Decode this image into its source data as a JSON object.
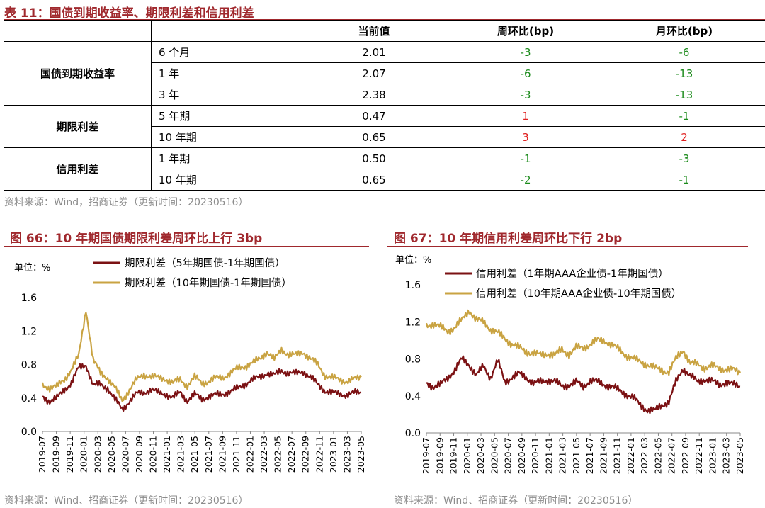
{
  "table": {
    "title": "表 11：国债到期收益率、期限利差和信用利差",
    "headers": [
      "",
      "",
      "当前值",
      "周环比(bp)",
      "月环比(bp)"
    ],
    "groups": [
      {
        "name": "国债到期收益率",
        "rows": [
          {
            "label": "6 个月",
            "current": "2.01",
            "wow": "-3",
            "mom": "-6"
          },
          {
            "label": "1 年",
            "current": "2.07",
            "wow": "-6",
            "mom": "-13"
          },
          {
            "label": "3 年",
            "current": "2.38",
            "wow": "-3",
            "mom": "-13"
          }
        ]
      },
      {
        "name": "期限利差",
        "rows": [
          {
            "label": "5 年期",
            "current": "0.47",
            "wow": "1",
            "mom": "-1"
          },
          {
            "label": "10 年期",
            "current": "0.65",
            "wow": "3",
            "mom": "2"
          }
        ]
      },
      {
        "name": "信用利差",
        "rows": [
          {
            "label": "1 年期",
            "current": "0.50",
            "wow": "-1",
            "mom": "-3"
          },
          {
            "label": "10 年期",
            "current": "0.65",
            "wow": "-2",
            "mom": "-1"
          }
        ]
      }
    ],
    "source": "资料来源：Wind，招商证券（更新时间：20230516）",
    "neg_color": "#1a8a1a",
    "pos_color": "#e02020"
  },
  "chart_data": [
    {
      "type": "line",
      "title": "图 66：10 年期国债期限利差周环比上行 3bp",
      "unit_label": "单位：%",
      "ylim": [
        0,
        1.6
      ],
      "yticks": [
        "0.0",
        "0.4",
        "0.8",
        "1.2",
        "1.6"
      ],
      "x_ticks": [
        "2019-07",
        "2019-09",
        "2019-11",
        "2020-01",
        "2020-03",
        "2020-05",
        "2020-07",
        "2020-09",
        "2020-11",
        "2021-01",
        "2021-03",
        "2021-05",
        "2021-07",
        "2021-09",
        "2021-11",
        "2022-01",
        "2022-03",
        "2022-05",
        "2022-07",
        "2022-09",
        "2022-11",
        "2023-01",
        "2023-03",
        "2023-05"
      ],
      "legend_placement": "top",
      "series": [
        {
          "name": "期限利差（5年期国债-1年期国债）",
          "color": "#7b1113",
          "values": [
            0.42,
            0.36,
            0.4,
            0.5,
            0.58,
            0.76,
            0.8,
            0.55,
            0.56,
            0.52,
            0.38,
            0.27,
            0.36,
            0.45,
            0.47,
            0.5,
            0.46,
            0.45,
            0.4,
            0.47,
            0.37,
            0.44,
            0.39,
            0.42,
            0.44,
            0.45,
            0.48,
            0.52,
            0.57,
            0.62,
            0.65,
            0.7,
            0.67,
            0.73,
            0.7,
            0.69,
            0.72,
            0.65,
            0.56,
            0.49,
            0.46,
            0.45,
            0.44,
            0.46,
            0.47
          ]
        },
        {
          "name": "期限利差（10年期国债-1年期国债）",
          "color": "#c9a342",
          "values": [
            0.56,
            0.52,
            0.54,
            0.62,
            0.74,
            0.9,
            1.46,
            0.85,
            0.7,
            0.64,
            0.52,
            0.37,
            0.5,
            0.62,
            0.68,
            0.66,
            0.64,
            0.63,
            0.58,
            0.62,
            0.55,
            0.65,
            0.58,
            0.6,
            0.64,
            0.65,
            0.7,
            0.76,
            0.78,
            0.82,
            0.87,
            0.95,
            0.86,
            0.98,
            0.92,
            0.91,
            0.95,
            0.87,
            0.8,
            0.67,
            0.64,
            0.62,
            0.6,
            0.62,
            0.65
          ]
        }
      ],
      "source": "资料来源：Wind、招商证券（更新时间：20230516）"
    },
    {
      "type": "line",
      "title": "图 67：10 年期信用利差周环比下行 2bp",
      "unit_label": "单位：%",
      "ylim": [
        0,
        1.6
      ],
      "yticks": [
        "0.0",
        "0.4",
        "0.8",
        "1.2",
        "1.6"
      ],
      "x_ticks": [
        "2019-07",
        "2019-09",
        "2019-11",
        "2020-01",
        "2020-03",
        "2020-05",
        "2020-07",
        "2020-09",
        "2020-11",
        "2021-01",
        "2021-03",
        "2021-05",
        "2021-07",
        "2021-09",
        "2021-11",
        "2022-01",
        "2022-03",
        "2022-05",
        "2022-07",
        "2022-09",
        "2022-11",
        "2023-01",
        "2023-03",
        "2023-05"
      ],
      "legend_placement": "top",
      "series": [
        {
          "name": "信用利差（1年期AAA企业债-1年期国债）",
          "color": "#7b1113",
          "values": [
            0.54,
            0.5,
            0.52,
            0.6,
            0.68,
            0.8,
            0.74,
            0.62,
            0.72,
            0.6,
            0.78,
            0.55,
            0.6,
            0.64,
            0.6,
            0.54,
            0.55,
            0.57,
            0.56,
            0.5,
            0.52,
            0.55,
            0.5,
            0.57,
            0.55,
            0.52,
            0.5,
            0.46,
            0.42,
            0.38,
            0.3,
            0.25,
            0.24,
            0.3,
            0.34,
            0.55,
            0.7,
            0.62,
            0.55,
            0.58,
            0.56,
            0.52,
            0.55,
            0.52,
            0.5
          ]
        },
        {
          "name": "信用利差（10年期AAA企业债-10年期国债）",
          "color": "#c9a342",
          "values": [
            1.16,
            1.18,
            1.14,
            1.1,
            1.14,
            1.22,
            1.33,
            1.22,
            1.2,
            1.12,
            1.08,
            1.02,
            0.96,
            0.92,
            0.88,
            0.86,
            0.84,
            0.86,
            0.84,
            0.9,
            0.85,
            0.92,
            0.92,
            0.96,
            1.0,
            1.0,
            0.95,
            0.9,
            0.84,
            0.8,
            0.77,
            0.74,
            0.7,
            0.68,
            0.66,
            0.8,
            0.9,
            0.75,
            0.74,
            0.71,
            0.72,
            0.7,
            0.69,
            0.68,
            0.65
          ]
        }
      ],
      "source": "资料来源：Wind、招商证券（更新时间：20230516）"
    }
  ]
}
